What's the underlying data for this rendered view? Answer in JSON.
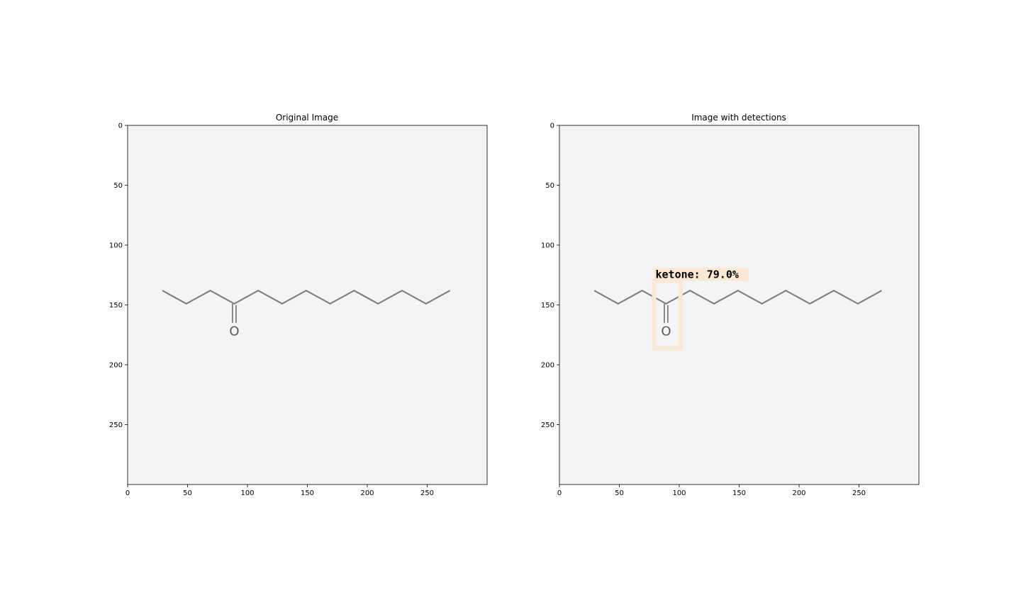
{
  "panels": [
    {
      "title": "Original Image",
      "x_ticks": [
        0,
        50,
        100,
        150,
        200,
        250
      ],
      "y_ticks": [
        0,
        50,
        100,
        150,
        200,
        250
      ],
      "detections": []
    },
    {
      "title": "Image with detections",
      "x_ticks": [
        0,
        50,
        100,
        150,
        200,
        250
      ],
      "y_ticks": [
        0,
        50,
        100,
        150,
        200,
        250
      ],
      "detections": [
        {
          "label": "ketone: 79.0%",
          "box": [
            79,
            130,
            101,
            186
          ],
          "label_box": [
            79,
            119,
            158,
            130
          ]
        }
      ]
    }
  ],
  "molecule": {
    "atom_label": "O",
    "chain": [
      [
        29,
        138
      ],
      [
        49,
        149
      ],
      [
        69,
        138
      ],
      [
        89,
        149
      ],
      [
        109,
        138
      ],
      [
        129,
        149
      ],
      [
        149,
        138
      ],
      [
        169,
        149
      ],
      [
        189,
        138
      ],
      [
        209,
        149
      ],
      [
        229,
        138
      ],
      [
        249,
        149
      ],
      [
        269,
        138
      ]
    ],
    "carbonyl_carbon": [
      89,
      149
    ],
    "oxygen": [
      89,
      172
    ]
  },
  "image_extent": [
    0,
    300
  ],
  "colors": {
    "background": "#f4f4f4",
    "bond": "#808080",
    "atom": "#5a5a5a",
    "detection": "#fbe8d4"
  }
}
